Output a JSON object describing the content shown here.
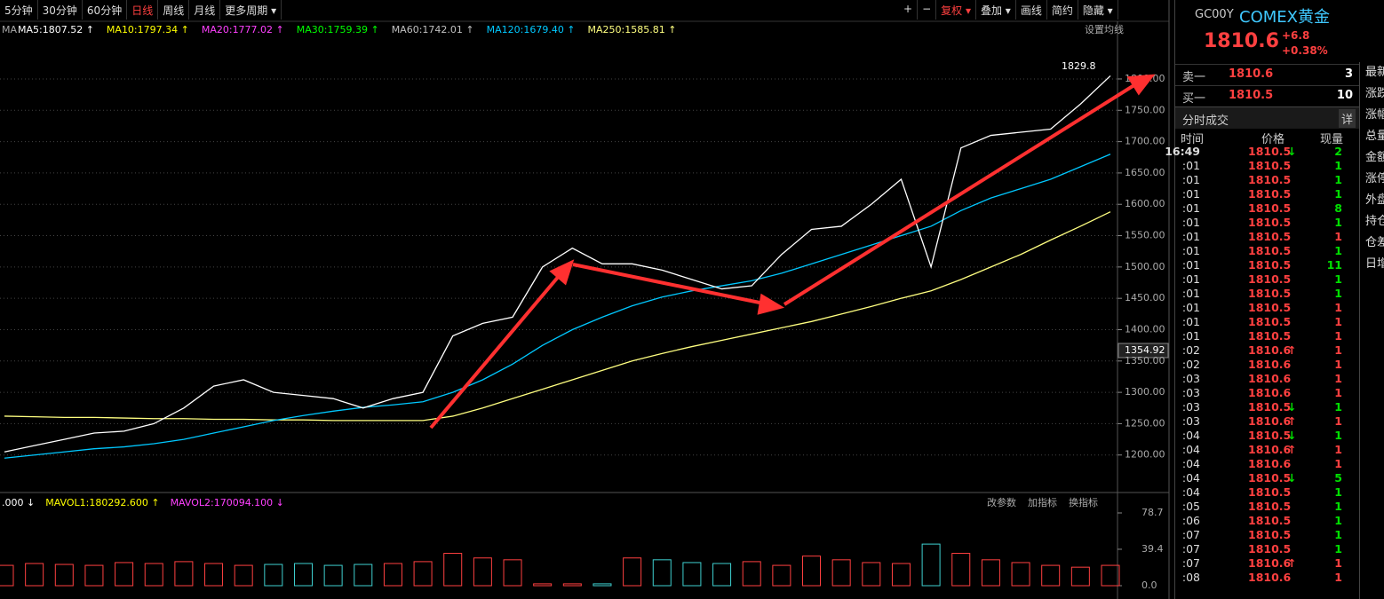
{
  "toolbar": {
    "periods": [
      {
        "label": "5分钟"
      },
      {
        "label": "30分钟"
      },
      {
        "label": "60分钟"
      },
      {
        "label": "日线",
        "active": true
      },
      {
        "label": "周线"
      },
      {
        "label": "月线"
      },
      {
        "label": "更多周期",
        "dropdown": true
      }
    ],
    "tools": [
      {
        "label": "+"
      },
      {
        "label": "−"
      },
      {
        "label": "复权",
        "dropdown": true,
        "active": true
      },
      {
        "label": "叠加",
        "dropdown": true
      },
      {
        "label": "画线"
      },
      {
        "label": "简约"
      },
      {
        "label": "隐藏",
        "dropdown": true
      }
    ]
  },
  "ma_legend": {
    "label": "MA",
    "settings": "设置均线",
    "items": [
      {
        "text": "MA5:1807.52 ↑",
        "color": "#ffffff"
      },
      {
        "text": "MA10:1797.34 ↑",
        "color": "#ffff00"
      },
      {
        "text": "MA20:1777.02 ↑",
        "color": "#ff40ff"
      },
      {
        "text": "MA30:1759.39 ↑",
        "color": "#00ff00"
      },
      {
        "text": "MA60:1742.01 ↑",
        "color": "#c0c0c0"
      },
      {
        "text": "MA120:1679.40 ↑",
        "color": "#00c8ff"
      },
      {
        "text": "MA250:1585.81 ↑",
        "color": "#ffff80"
      }
    ]
  },
  "price_chart": {
    "ylim": [
      1143,
      1892
    ],
    "yticks": [
      {
        "value": 1200,
        "label": "1200.00"
      },
      {
        "value": 1250,
        "label": "1250.00"
      },
      {
        "value": 1300,
        "label": "1300.00"
      },
      {
        "value": 1350,
        "label": "1350.00"
      },
      {
        "value": 1400,
        "label": "1400.00"
      },
      {
        "value": 1450,
        "label": "1450.00"
      },
      {
        "value": 1500,
        "label": "1500.00"
      },
      {
        "value": 1550,
        "label": "1550.00"
      },
      {
        "value": 1600,
        "label": "1600.00"
      },
      {
        "value": 1650,
        "label": "1650.00"
      },
      {
        "value": 1700,
        "label": "1700.00"
      },
      {
        "value": 1750,
        "label": "1750.00"
      },
      {
        "value": 1800,
        "label": "1800.00"
      }
    ],
    "high_label": "1829.8",
    "cursor_label": "1354.92",
    "close": {
      "color": "#ffffff",
      "values": [
        1205,
        1215,
        1225,
        1235,
        1238,
        1250,
        1275,
        1310,
        1320,
        1300,
        1295,
        1290,
        1275,
        1290,
        1300,
        1390,
        1410,
        1420,
        1500,
        1530,
        1505,
        1505,
        1495,
        1480,
        1465,
        1470,
        1520,
        1560,
        1565,
        1600,
        1640,
        1500,
        1690,
        1710,
        1715,
        1720,
        1760,
        1805
      ]
    },
    "ma120": {
      "color": "#00c8ff",
      "values": [
        1195,
        1200,
        1205,
        1210,
        1213,
        1218,
        1225,
        1235,
        1245,
        1255,
        1263,
        1270,
        1276,
        1280,
        1285,
        1300,
        1320,
        1345,
        1375,
        1400,
        1420,
        1438,
        1452,
        1462,
        1470,
        1478,
        1490,
        1505,
        1520,
        1535,
        1550,
        1565,
        1590,
        1610,
        1625,
        1640,
        1660,
        1680
      ]
    },
    "ma250": {
      "color": "#ffff80",
      "values": [
        1262,
        1261,
        1260,
        1260,
        1259,
        1258,
        1258,
        1257,
        1257,
        1256,
        1256,
        1255,
        1255,
        1255,
        1255,
        1262,
        1275,
        1290,
        1305,
        1320,
        1335,
        1350,
        1362,
        1373,
        1383,
        1393,
        1403,
        1413,
        1425,
        1437,
        1450,
        1462,
        1480,
        1500,
        1520,
        1543,
        1565,
        1588
      ]
    }
  },
  "volume_chart": {
    "legend": [
      {
        "text": ".000 ↓",
        "color": "#ffffff"
      },
      {
        "text": "MAVOL1:180292.600 ↑",
        "color": "#ffff00"
      },
      {
        "text": "MAVOL2:170094.100 ↓",
        "color": "#ff40ff"
      }
    ],
    "buttons": [
      "改参数",
      "加指标",
      "换指标"
    ],
    "ylim": [
      0,
      78.7
    ],
    "yticks": [
      {
        "value": 0,
        "label": "0.0"
      },
      39.4,
      78.7
    ],
    "values": [
      22,
      24,
      23,
      22,
      25,
      24,
      26,
      24,
      22,
      23,
      24,
      22,
      23,
      24,
      26,
      35,
      30,
      28,
      2,
      2,
      2,
      30,
      28,
      25,
      24,
      26,
      22,
      32,
      28,
      25,
      24,
      45,
      35,
      28,
      25,
      22,
      20,
      22
    ]
  },
  "quote": {
    "code": "GC00Y",
    "name": "COMEX黄金",
    "price": "1810.6",
    "change": "+6.8",
    "pct": "+0.38%",
    "book": [
      {
        "label": "卖一",
        "price": "1810.6",
        "qty": "3"
      },
      {
        "label": "买一",
        "price": "1810.5",
        "qty": "10"
      }
    ]
  },
  "trades": {
    "title": "分时成交",
    "detail": "详",
    "headers": [
      "时间",
      "价格",
      "现量"
    ],
    "rows": [
      {
        "time": "16:49",
        "price": "1810.5",
        "arrow": "↓",
        "qty": "2",
        "color": "#00e000"
      },
      {
        "time": ":01",
        "price": "1810.5",
        "qty": "1",
        "color": "#00e000"
      },
      {
        "time": ":01",
        "price": "1810.5",
        "qty": "1",
        "color": "#00e000"
      },
      {
        "time": ":01",
        "price": "1810.5",
        "qty": "1",
        "color": "#00e000"
      },
      {
        "time": ":01",
        "price": "1810.5",
        "qty": "8",
        "color": "#00e000"
      },
      {
        "time": ":01",
        "price": "1810.5",
        "qty": "1",
        "color": "#00e000"
      },
      {
        "time": ":01",
        "price": "1810.5",
        "qty": "1",
        "color": "#ff4040"
      },
      {
        "time": ":01",
        "price": "1810.5",
        "qty": "1",
        "color": "#00e000"
      },
      {
        "time": ":01",
        "price": "1810.5",
        "qty": "11",
        "color": "#00e000"
      },
      {
        "time": ":01",
        "price": "1810.5",
        "qty": "1",
        "color": "#00e000"
      },
      {
        "time": ":01",
        "price": "1810.5",
        "qty": "1",
        "color": "#00e000"
      },
      {
        "time": ":01",
        "price": "1810.5",
        "qty": "1",
        "color": "#ff4040"
      },
      {
        "time": ":01",
        "price": "1810.5",
        "qty": "1",
        "color": "#ff4040"
      },
      {
        "time": ":01",
        "price": "1810.5",
        "qty": "1",
        "color": "#ff4040"
      },
      {
        "time": ":02",
        "price": "1810.6",
        "arrow": "↑",
        "qty": "1",
        "color": "#ff4040"
      },
      {
        "time": ":02",
        "price": "1810.6",
        "qty": "1",
        "color": "#ff4040"
      },
      {
        "time": ":03",
        "price": "1810.6",
        "qty": "1",
        "color": "#ff4040"
      },
      {
        "time": ":03",
        "price": "1810.6",
        "qty": "1",
        "color": "#ff4040"
      },
      {
        "time": ":03",
        "price": "1810.5",
        "arrow": "↓",
        "qty": "1",
        "color": "#00e000"
      },
      {
        "time": ":03",
        "price": "1810.6",
        "arrow": "↑",
        "qty": "1",
        "color": "#ff4040"
      },
      {
        "time": ":04",
        "price": "1810.5",
        "arrow": "↓",
        "qty": "1",
        "color": "#00e000"
      },
      {
        "time": ":04",
        "price": "1810.6",
        "arrow": "↑",
        "qty": "1",
        "color": "#ff4040"
      },
      {
        "time": ":04",
        "price": "1810.6",
        "qty": "1",
        "color": "#ff4040"
      },
      {
        "time": ":04",
        "price": "1810.5",
        "arrow": "↓",
        "qty": "5",
        "color": "#00e000"
      },
      {
        "time": ":04",
        "price": "1810.5",
        "qty": "1",
        "color": "#00e000"
      },
      {
        "time": ":05",
        "price": "1810.5",
        "qty": "1",
        "color": "#00e000"
      },
      {
        "time": ":06",
        "price": "1810.5",
        "qty": "1",
        "color": "#00e000"
      },
      {
        "time": ":07",
        "price": "1810.5",
        "qty": "1",
        "color": "#00e000"
      },
      {
        "time": ":07",
        "price": "1810.5",
        "qty": "1",
        "color": "#00e000"
      },
      {
        "time": ":07",
        "price": "1810.6",
        "arrow": "↑",
        "qty": "1",
        "color": "#ff4040"
      },
      {
        "time": ":08",
        "price": "1810.6",
        "qty": "1",
        "color": "#ff4040"
      }
    ]
  },
  "side_labels": [
    "最新",
    "涨跌",
    "涨幅",
    "总量",
    "金额",
    "涨停",
    "外盘",
    "持仓",
    "仓差",
    "日增"
  ]
}
